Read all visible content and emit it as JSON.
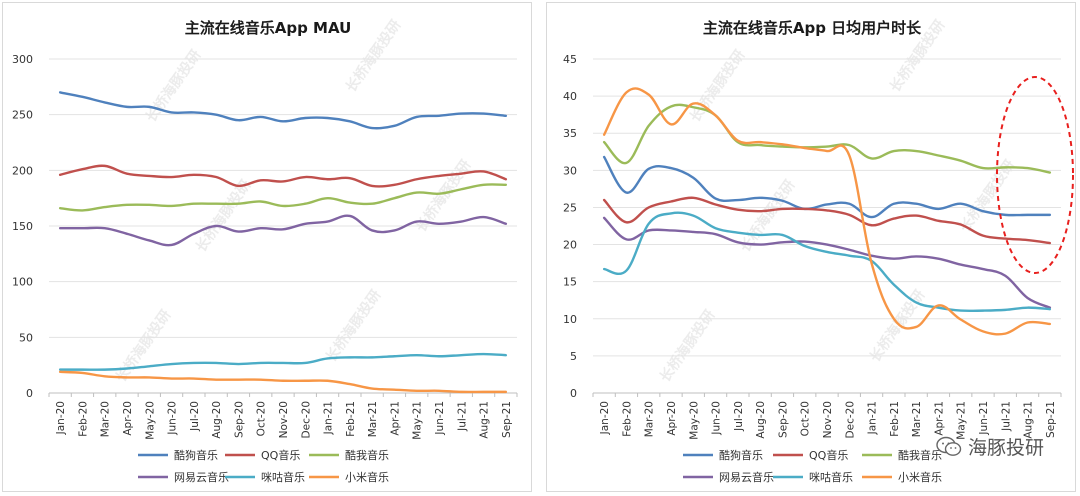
{
  "watermark": "长桥海豚投研",
  "brand": {
    "label": "海豚投研"
  },
  "chart_data": [
    {
      "type": "line",
      "title": "主流在线音乐App MAU",
      "xlabel": "",
      "ylabel": "",
      "categories": [
        "Jan-20",
        "Feb-20",
        "Mar-20",
        "Apr-20",
        "May-20",
        "Jun-20",
        "Jul-20",
        "Aug-20",
        "Sep-20",
        "Oct-20",
        "Nov-20",
        "Dec-20",
        "Jan-21",
        "Feb-21",
        "Mar-21",
        "Apr-21",
        "May-21",
        "Jun-21",
        "Jul-21",
        "Aug-21",
        "Sep-21"
      ],
      "ylim": [
        0,
        300
      ],
      "yticks": [
        0,
        50,
        100,
        150,
        200,
        250,
        300
      ],
      "grid": true,
      "legend": "bottom",
      "series": [
        {
          "name": "酷狗音乐",
          "color": "#4f81bd",
          "values": [
            270,
            266,
            261,
            257,
            257,
            252,
            252,
            250,
            245,
            248,
            244,
            247,
            247,
            244,
            238,
            240,
            248,
            249,
            251,
            251,
            249
          ]
        },
        {
          "name": "QQ音乐",
          "color": "#c0504d",
          "values": [
            196,
            201,
            204,
            197,
            195,
            194,
            196,
            194,
            186,
            191,
            190,
            194,
            192,
            193,
            186,
            187,
            192,
            195,
            197,
            199,
            192
          ]
        },
        {
          "name": "酷我音乐",
          "color": "#9bbb59",
          "values": [
            166,
            164,
            167,
            169,
            169,
            168,
            170,
            170,
            170,
            172,
            168,
            170,
            175,
            171,
            170,
            175,
            180,
            179,
            183,
            187,
            187
          ]
        },
        {
          "name": "网易云音乐",
          "color": "#8064a2",
          "values": [
            148,
            148,
            148,
            143,
            137,
            133,
            143,
            150,
            145,
            148,
            147,
            152,
            154,
            159,
            146,
            146,
            154,
            152,
            154,
            158,
            152
          ]
        },
        {
          "name": "咪咕音乐",
          "color": "#4bacc6",
          "values": [
            21,
            21,
            21,
            22,
            24,
            26,
            27,
            27,
            26,
            27,
            27,
            27,
            31,
            32,
            32,
            33,
            34,
            33,
            34,
            35,
            34
          ]
        },
        {
          "name": "小米音乐",
          "color": "#f79646",
          "values": [
            19,
            18,
            15,
            14,
            14,
            13,
            13,
            12,
            12,
            12,
            11,
            11,
            11,
            8,
            4,
            3,
            2,
            2,
            1,
            1,
            1
          ]
        }
      ]
    },
    {
      "type": "line",
      "title": "主流在线音乐App 日均用户时长",
      "xlabel": "",
      "ylabel": "",
      "categories": [
        "Jan-20",
        "Feb-20",
        "Mar-20",
        "Apr-20",
        "May-20",
        "Jun-20",
        "Jul-20",
        "Aug-20",
        "Sep-20",
        "Oct-20",
        "Nov-20",
        "Dec-20",
        "Jan-21",
        "Feb-21",
        "Mar-21",
        "Apr-21",
        "May-21",
        "Jun-21",
        "Jul-21",
        "Aug-21",
        "Sep-21"
      ],
      "ylim": [
        0,
        45
      ],
      "yticks": [
        0,
        5,
        10,
        15,
        20,
        25,
        30,
        35,
        40,
        45
      ],
      "grid": true,
      "legend": "bottom",
      "annotation": "red dashed ellipse highlighting Jul-21 to Sep-21",
      "series": [
        {
          "name": "酷狗音乐",
          "color": "#4f81bd",
          "values": [
            31.8,
            27.0,
            30.2,
            30.3,
            29.0,
            26.2,
            26.0,
            26.3,
            25.9,
            24.8,
            25.4,
            25.5,
            23.7,
            25.5,
            25.5,
            24.8,
            25.5,
            24.5,
            24.0,
            24.0,
            24.0
          ]
        },
        {
          "name": "QQ音乐",
          "color": "#c0504d",
          "values": [
            26.0,
            23.0,
            25.0,
            25.8,
            26.3,
            25.4,
            24.7,
            24.5,
            24.8,
            24.8,
            24.6,
            24.0,
            22.6,
            23.5,
            23.9,
            23.2,
            22.7,
            21.2,
            20.8,
            20.6,
            20.2
          ]
        },
        {
          "name": "酷我音乐",
          "color": "#9bbb59",
          "values": [
            33.8,
            31.0,
            36.0,
            38.6,
            38.5,
            37.4,
            33.8,
            33.4,
            33.2,
            33.1,
            33.2,
            33.4,
            31.6,
            32.6,
            32.6,
            32.0,
            31.3,
            30.3,
            30.4,
            30.3,
            29.7
          ]
        },
        {
          "name": "网易云音乐",
          "color": "#8064a2",
          "values": [
            23.6,
            20.7,
            21.9,
            21.9,
            21.7,
            21.4,
            20.3,
            20.0,
            20.3,
            20.4,
            20.0,
            19.3,
            18.5,
            18.1,
            18.4,
            18.1,
            17.3,
            16.7,
            15.8,
            12.8,
            11.5
          ]
        },
        {
          "name": "咪咕音乐",
          "color": "#4bacc6",
          "values": [
            16.7,
            16.5,
            22.8,
            24.2,
            23.9,
            22.2,
            21.6,
            21.3,
            21.3,
            19.8,
            19.0,
            18.5,
            17.8,
            14.6,
            12.2,
            11.5,
            11.1,
            11.1,
            11.2,
            11.5,
            11.3
          ]
        },
        {
          "name": "小米音乐",
          "color": "#f79646",
          "values": [
            34.8,
            40.5,
            40.2,
            36.2,
            39.0,
            37.4,
            34.0,
            33.8,
            33.5,
            33.0,
            32.6,
            32.0,
            17.5,
            10.0,
            8.9,
            11.8,
            9.9,
            8.3,
            8.0,
            9.5,
            9.3
          ]
        }
      ]
    }
  ]
}
